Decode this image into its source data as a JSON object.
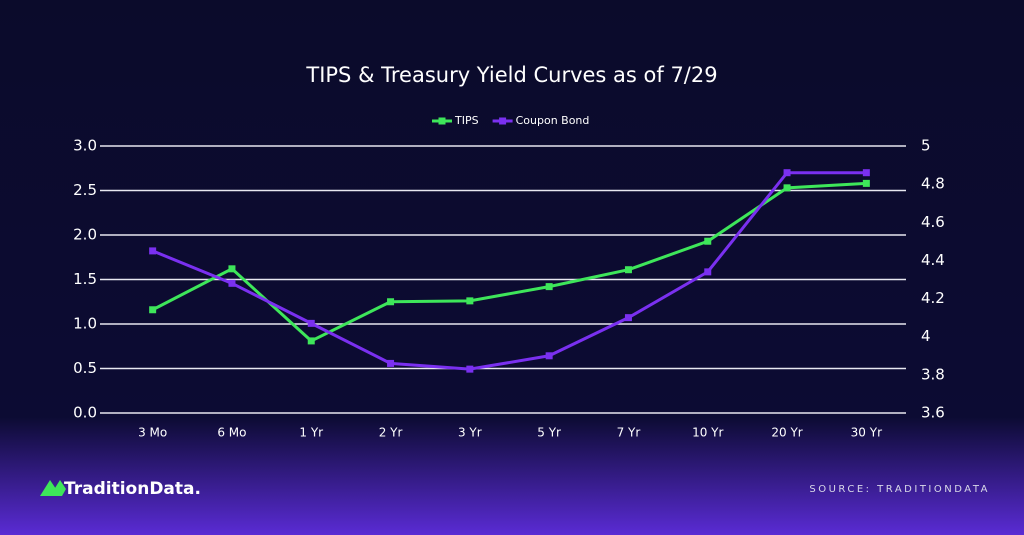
{
  "chart_data": {
    "type": "line",
    "title": "TIPS & Treasury Yield Curves as of 7/29",
    "categories": [
      "3 Mo",
      "6 Mo",
      "1 Yr",
      "2 Yr",
      "3 Yr",
      "5 Yr",
      "7 Yr",
      "10 Yr",
      "20 Yr",
      "30 Yr"
    ],
    "series": [
      {
        "name": "TIPS",
        "color": "#3ee65a",
        "values": [
          1.16,
          1.62,
          0.81,
          1.25,
          1.26,
          1.42,
          1.61,
          1.93,
          2.53,
          2.58
        ]
      },
      {
        "name": "Coupon Bond",
        "color": "#7a30f0",
        "axis": "y2",
        "values": [
          4.45,
          4.28,
          4.07,
          3.86,
          3.83,
          3.9,
          4.1,
          4.34,
          4.86,
          4.86
        ]
      }
    ],
    "ylim": [
      0,
      3
    ],
    "yticks": [
      {
        "value": 0,
        "label": "0.0"
      },
      0.5,
      {
        "value": 1,
        "label": "1.0"
      },
      1.5,
      {
        "value": 2,
        "label": "2.0"
      },
      2.5,
      {
        "value": 3,
        "label": "3.0"
      }
    ],
    "y2lim": [
      3.6,
      5
    ],
    "y2ticks": [
      3.6,
      3.8,
      4,
      4.2,
      4.4,
      4.6,
      4.8,
      5
    ],
    "grid": true,
    "legend": "top"
  },
  "branding": {
    "logo": "TraditionData.",
    "source": "SOURCE: TRADITIONDATA"
  }
}
